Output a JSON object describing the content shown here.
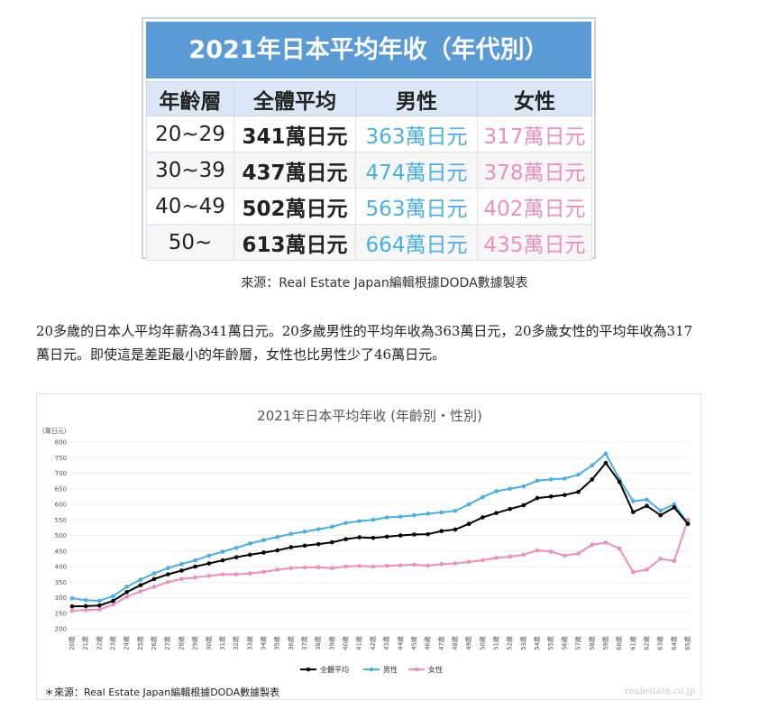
{
  "table": {
    "title": "2021年日本平均年收（年代別）",
    "headers": [
      "年齡層",
      "全體平均",
      "男性",
      "女性"
    ],
    "rows": [
      {
        "age": "20~29",
        "overall": "341萬日元",
        "male": "363萬日元",
        "female": "317萬日元"
      },
      {
        "age": "30~39",
        "overall": "437萬日元",
        "male": "474萬日元",
        "female": "378萬日元"
      },
      {
        "age": "40~49",
        "overall": "502萬日元",
        "male": "563萬日元",
        "female": "402萬日元"
      },
      {
        "age": "50~",
        "overall": "613萬日元",
        "male": "664萬日元",
        "female": "435萬日元"
      }
    ]
  },
  "table_source": "來源：Real Estate Japan編輯根據DODA數據製表",
  "paragraph": "20多歲的日本人平均年薪為341萬日元。20多歲男性的平均年收為363萬日元，20多歲女性的平均年收為317萬日元。即使這是差距最小的年齡層，女性也比男性少了46萬日元。",
  "chart_source": "＊來源：Real Estate Japan編輯根據DODA數據製表",
  "watermark": "realestate.co.jp",
  "colors": {
    "overall": "#000000",
    "male": "#4aaee0",
    "female": "#ec8fbf",
    "header": "#5b9bd5"
  },
  "chart_data": {
    "type": "line",
    "title": "2021年日本平均年收 (年齡別・性別)",
    "unit_label": "(萬日元)",
    "ylim": [
      200,
      800
    ],
    "yticks": [
      "200",
      "250",
      "300",
      "350",
      "400",
      "450",
      "500",
      "550",
      "600",
      "650",
      "700",
      "750",
      "800"
    ],
    "categories": [
      "20歲",
      "21歲",
      "22歲",
      "23歲",
      "24歲",
      "25歲",
      "26歲",
      "27歲",
      "28歲",
      "29歲",
      "30歲",
      "31歲",
      "32歲",
      "33歲",
      "34歲",
      "35歲",
      "36歲",
      "37歲",
      "38歲",
      "39歲",
      "40歲",
      "41歲",
      "42歲",
      "43歲",
      "44歲",
      "45歲",
      "46歲",
      "47歲",
      "48歲",
      "49歲",
      "50歲",
      "51歲",
      "52歲",
      "53歲",
      "54歲",
      "55歲",
      "56歲",
      "57歲",
      "58歲",
      "59歲",
      "60歲",
      "61歲",
      "62歲",
      "63歲",
      "64歲",
      "65歲"
    ],
    "legend_position": "bottom",
    "series": [
      {
        "name": "全體平均",
        "key": "overall",
        "values": [
          272,
          273,
          275,
          290,
          318,
          340,
          360,
          375,
          387,
          400,
          410,
          420,
          430,
          438,
          445,
          452,
          462,
          467,
          472,
          478,
          488,
          494,
          492,
          496,
          500,
          503,
          504,
          514,
          519,
          537,
          558,
          572,
          585,
          597,
          620,
          625,
          630,
          640,
          680,
          733,
          672,
          575,
          595,
          565,
          590,
          537
        ]
      },
      {
        "name": "男性",
        "key": "male",
        "values": [
          298,
          292,
          290,
          305,
          335,
          358,
          378,
          395,
          408,
          420,
          435,
          448,
          460,
          474,
          485,
          495,
          505,
          512,
          520,
          528,
          540,
          546,
          550,
          558,
          560,
          565,
          570,
          574,
          579,
          600,
          623,
          642,
          650,
          658,
          676,
          680,
          683,
          695,
          725,
          763,
          680,
          610,
          615,
          580,
          600,
          540
        ]
      },
      {
        "name": "女性",
        "key": "female",
        "values": [
          258,
          260,
          262,
          278,
          303,
          320,
          335,
          350,
          360,
          365,
          370,
          375,
          375,
          378,
          383,
          390,
          395,
          397,
          398,
          395,
          400,
          402,
          400,
          402,
          404,
          406,
          403,
          408,
          410,
          415,
          420,
          428,
          432,
          438,
          452,
          448,
          435,
          442,
          470,
          477,
          458,
          382,
          390,
          425,
          418,
          550
        ]
      }
    ]
  }
}
